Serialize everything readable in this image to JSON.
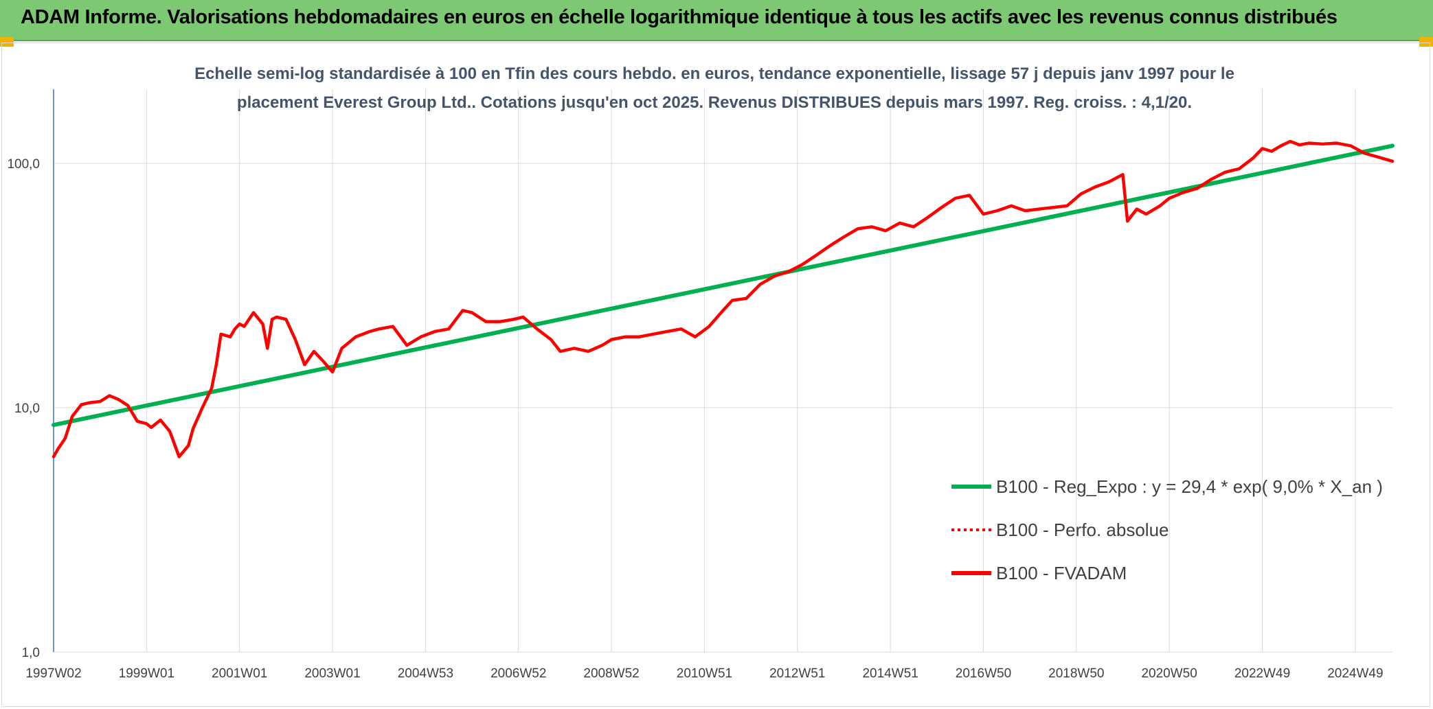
{
  "banner": {
    "title": "ADAM Informe. Valorisations hebdomadaires en euros en échelle logarithmique identique à tous les actifs avec les revenus connus distribués"
  },
  "colors": {
    "banner_bg": "#7dc873",
    "corner_accent": "#f0b400",
    "regression": "#00b050",
    "fvadam": "#ff0000",
    "perfo": "#ff0000"
  },
  "chart_data": {
    "type": "line",
    "title_lines": [
      "Echelle semi-log standardisée à 100 en Tfin des cours hebdo. en euros, tendance exponentielle, lissage 57 j depuis janv 1997 pour le",
      "placement Everest Group Ltd.. Cotations jusqu'en oct 2025. Revenus DISTRIBUES depuis mars 1997. Reg. croiss. : 4,1/20."
    ],
    "y_scale": "log",
    "ylim": [
      1,
      200
    ],
    "y_ticks": [
      {
        "value": 1,
        "label": "1,0"
      },
      {
        "value": 10,
        "label": "10,0"
      },
      {
        "value": 100,
        "label": "100,0"
      }
    ],
    "xlim": [
      1997.0,
      2025.8
    ],
    "x_ticks": [
      {
        "pos": 1997.0,
        "label": "1997W02"
      },
      {
        "pos": 1999.0,
        "label": "1999W01"
      },
      {
        "pos": 2001.0,
        "label": "2001W01"
      },
      {
        "pos": 2003.0,
        "label": "2003W01"
      },
      {
        "pos": 2005.0,
        "label": "2004W53"
      },
      {
        "pos": 2007.0,
        "label": "2006W52"
      },
      {
        "pos": 2009.0,
        "label": "2008W52"
      },
      {
        "pos": 2011.0,
        "label": "2010W51"
      },
      {
        "pos": 2013.0,
        "label": "2012W51"
      },
      {
        "pos": 2015.0,
        "label": "2014W51"
      },
      {
        "pos": 2017.0,
        "label": "2016W50"
      },
      {
        "pos": 2019.0,
        "label": "2018W50"
      },
      {
        "pos": 2021.0,
        "label": "2020W50"
      },
      {
        "pos": 2023.0,
        "label": "2022W49"
      },
      {
        "pos": 2025.0,
        "label": "2024W49"
      }
    ],
    "grid": "vertical and horizontal",
    "legend_position": "bottom-right, inside plot",
    "legend": [
      {
        "label": "B100 - Reg_Expo : y = 29,4 * exp( 9,0% *  X_an )",
        "color": "#00b050",
        "style": "solid"
      },
      {
        "label": "B100 - Perfo. absolue",
        "color": "#ff0000",
        "style": "dotted"
      },
      {
        "label": "B100 - FVADAM",
        "color": "#ff0000",
        "style": "solid"
      }
    ],
    "series": [
      {
        "name": "B100 - Reg_Expo : y = 29,4 * exp( 9,0% *  X_an )",
        "x": [
          1997.0,
          2025.8
        ],
        "y": [
          8.5,
          118
        ]
      },
      {
        "name": "B100 - FVADAM",
        "x": [
          1997.0,
          1997.1,
          1997.25,
          1997.4,
          1997.6,
          1997.8,
          1998.0,
          1998.2,
          1998.4,
          1998.6,
          1998.8,
          1999.0,
          1999.1,
          1999.3,
          1999.5,
          1999.7,
          1999.9,
          2000.0,
          2000.2,
          2000.4,
          2000.5,
          2000.6,
          2000.8,
          2000.9,
          2001.0,
          2001.1,
          2001.3,
          2001.5,
          2001.6,
          2001.7,
          2001.8,
          2002.0,
          2002.2,
          2002.4,
          2002.6,
          2002.8,
          2003.0,
          2003.2,
          2003.5,
          2003.8,
          2004.0,
          2004.3,
          2004.6,
          2004.9,
          2005.2,
          2005.5,
          2005.8,
          2006.0,
          2006.3,
          2006.6,
          2006.9,
          2007.1,
          2007.4,
          2007.7,
          2007.9,
          2008.2,
          2008.5,
          2008.8,
          2009.0,
          2009.3,
          2009.6,
          2009.9,
          2010.2,
          2010.5,
          2010.8,
          2011.1,
          2011.4,
          2011.6,
          2011.9,
          2012.2,
          2012.5,
          2012.8,
          2013.1,
          2013.4,
          2013.7,
          2014.0,
          2014.3,
          2014.6,
          2014.9,
          2015.2,
          2015.5,
          2015.8,
          2016.1,
          2016.4,
          2016.7,
          2017.0,
          2017.3,
          2017.6,
          2017.9,
          2018.2,
          2018.5,
          2018.8,
          2019.1,
          2019.4,
          2019.7,
          2020.0,
          2020.1,
          2020.3,
          2020.5,
          2020.8,
          2021.0,
          2021.3,
          2021.6,
          2021.9,
          2022.2,
          2022.5,
          2022.8,
          2023.0,
          2023.2,
          2023.4,
          2023.6,
          2023.8,
          2024.0,
          2024.3,
          2024.6,
          2024.9,
          2025.2,
          2025.5,
          2025.8
        ],
        "y": [
          6.3,
          6.8,
          7.5,
          9.2,
          10.3,
          10.5,
          10.6,
          11.2,
          10.8,
          10.2,
          8.8,
          8.6,
          8.3,
          8.9,
          8.0,
          6.3,
          7.0,
          8.2,
          10.0,
          12.0,
          15.0,
          20.0,
          19.5,
          21.0,
          22.0,
          21.5,
          24.5,
          22.0,
          17.5,
          23.0,
          23.5,
          23.0,
          19.0,
          15.0,
          17.0,
          15.5,
          14.0,
          17.5,
          19.5,
          20.5,
          21.0,
          21.5,
          18.0,
          19.5,
          20.5,
          21.0,
          25.0,
          24.5,
          22.5,
          22.5,
          23.0,
          23.5,
          21.0,
          19.0,
          17.0,
          17.5,
          17.0,
          18.0,
          19.0,
          19.5,
          19.5,
          20.0,
          20.5,
          21.0,
          19.5,
          21.5,
          25.0,
          27.5,
          28.0,
          32.0,
          34.5,
          36.0,
          38.5,
          42.0,
          46.0,
          50.0,
          54.0,
          55.0,
          53.0,
          57.0,
          55.0,
          60.0,
          66.0,
          72.0,
          74.0,
          62.0,
          64.0,
          67.0,
          64.0,
          65.0,
          66.0,
          67.0,
          75.0,
          80.0,
          84.0,
          90.0,
          58.0,
          65.0,
          62.0,
          67.0,
          72.0,
          76.0,
          79.0,
          86.0,
          92.0,
          95.0,
          105.0,
          115.0,
          112.0,
          118.0,
          123.0,
          119.0,
          121.0,
          120.0,
          121.0,
          118.0,
          110.0,
          106.0,
          102.0
        ]
      }
    ]
  }
}
